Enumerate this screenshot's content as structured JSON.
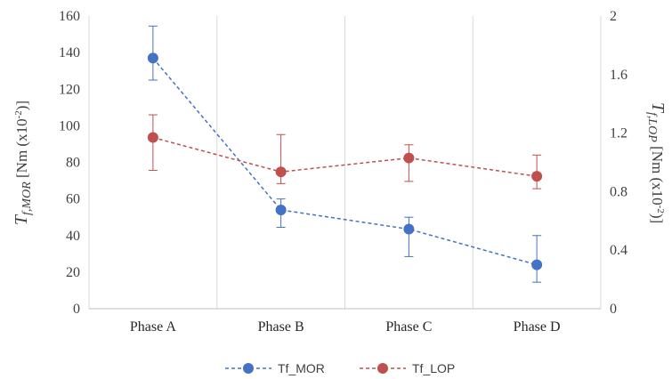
{
  "chart_data": {
    "type": "line",
    "categories": [
      "Phase A",
      "Phase B",
      "Phase C",
      "Phase D"
    ],
    "ylabel_left": {
      "main": "T",
      "sub": "f,MOR",
      "rest": " [Nm (x10",
      "sup": "-2",
      "end": ")]"
    },
    "ylabel_right": {
      "main": "T",
      "sub": "f,LOP",
      "rest": " [Nm (x10",
      "sup": "-2",
      "end": ")]"
    },
    "y_left": {
      "min": 0,
      "max": 160,
      "step": 20,
      "ticks": [
        "0",
        "20",
        "40",
        "60",
        "80",
        "100",
        "120",
        "140",
        "160"
      ]
    },
    "y_right": {
      "min": 0,
      "max": 2,
      "step": 0.4,
      "ticks": [
        "0",
        "0.4",
        "0.8",
        "1.2",
        "1.6",
        "2"
      ]
    },
    "grid": "vertical",
    "legend_position": "bottom",
    "series": [
      {
        "name": "Tf_MOR",
        "axis": "left",
        "color": "#4472C4",
        "line_style": "dashed",
        "values": [
          137,
          54,
          43.5,
          24
        ],
        "err_low": [
          125,
          44.5,
          28.5,
          14.5
        ],
        "err_high": [
          154.5,
          60,
          50,
          40
        ]
      },
      {
        "name": "Tf_LOP",
        "axis": "right",
        "color": "#C0504D",
        "line_style": "dashed",
        "values": [
          1.17,
          0.935,
          1.03,
          0.905
        ],
        "err_low": [
          0.945,
          0.855,
          0.87,
          0.82
        ],
        "err_high": [
          1.325,
          1.19,
          1.12,
          1.05
        ]
      }
    ]
  }
}
